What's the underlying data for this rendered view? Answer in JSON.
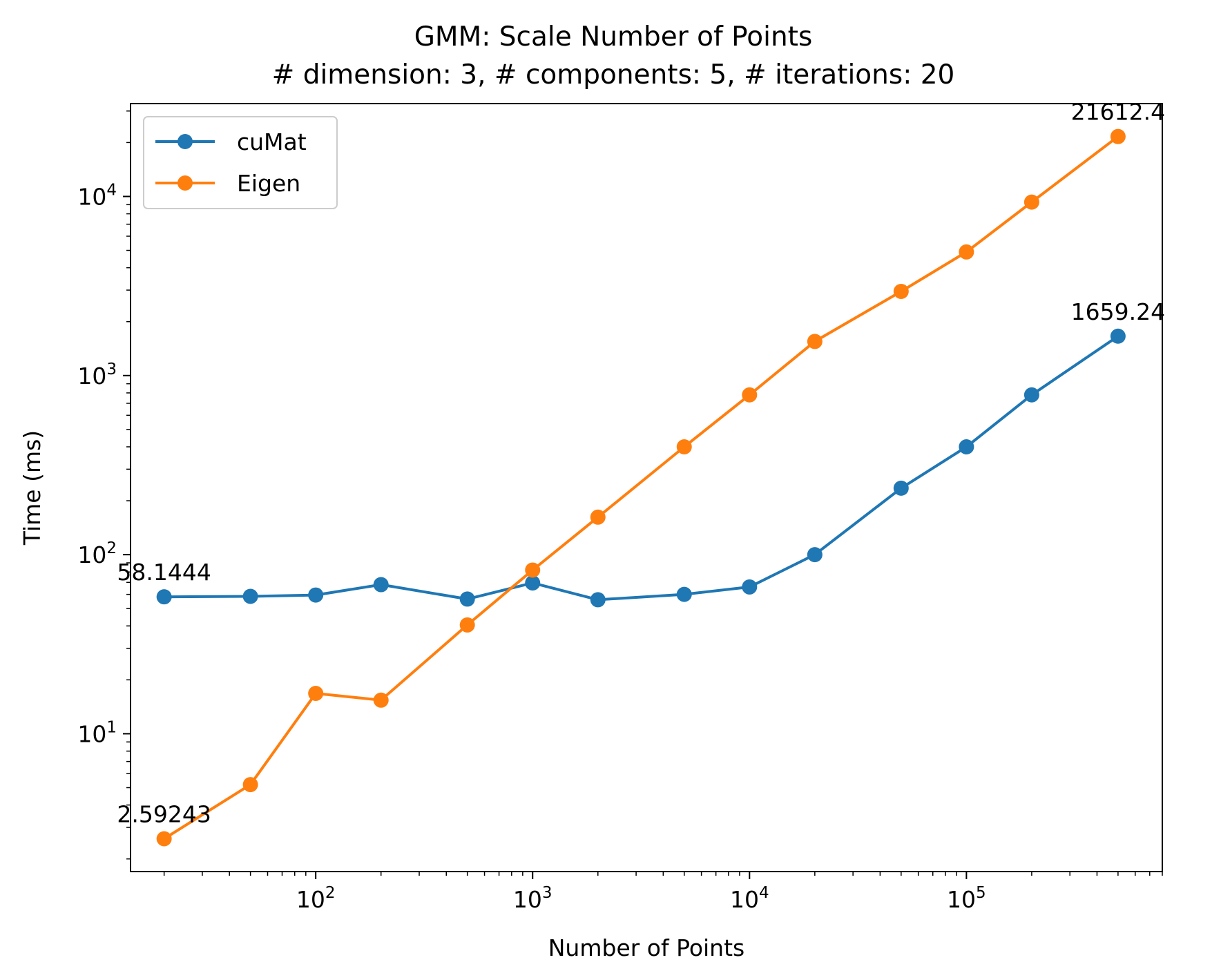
{
  "chart_data": {
    "type": "line",
    "title": "GMM: Scale Number of Points",
    "subtitle": "# dimension: 3, # components: 5, # iterations: 20",
    "xlabel": "Number of Points",
    "ylabel": "Time (ms)",
    "xscale": "log",
    "yscale": "log",
    "xlim": [
      14,
      800000
    ],
    "ylim": [
      1.7,
      33000
    ],
    "x_major_ticks": [
      {
        "value": 100,
        "base": "10",
        "exp": "2"
      },
      {
        "value": 1000,
        "base": "10",
        "exp": "3"
      },
      {
        "value": 10000,
        "base": "10",
        "exp": "4"
      },
      {
        "value": 100000,
        "base": "10",
        "exp": "5"
      }
    ],
    "y_major_ticks": [
      {
        "value": 10,
        "base": "10",
        "exp": "1"
      },
      {
        "value": 100,
        "base": "10",
        "exp": "2"
      },
      {
        "value": 1000,
        "base": "10",
        "exp": "3"
      },
      {
        "value": 10000,
        "base": "10",
        "exp": "4"
      }
    ],
    "grid": false,
    "legend_position": "top-left",
    "x": [
      20,
      50,
      100,
      200,
      500,
      1000,
      2000,
      5000,
      10000,
      20000,
      50000,
      100000,
      200000,
      500000
    ],
    "series": [
      {
        "name": "cuMat",
        "color": "#1f77b4",
        "values": [
          58.1444,
          58.5,
          59.5,
          68,
          56.5,
          69.5,
          56,
          60,
          66,
          100,
          235,
          400,
          780,
          1659.24
        ]
      },
      {
        "name": "Eigen",
        "color": "#ff7f0e",
        "values": [
          2.59243,
          5.2,
          16.8,
          15.4,
          40.5,
          82,
          162,
          400,
          780,
          1550,
          2950,
          4900,
          9300,
          21612.4
        ]
      }
    ],
    "annotations": [
      {
        "text": "58.1444",
        "series": 0,
        "index": 0
      },
      {
        "text": "2.59243",
        "series": 1,
        "index": 0
      },
      {
        "text": "1659.24",
        "series": 0,
        "index": 13
      },
      {
        "text": "21612.4",
        "series": 1,
        "index": 13
      }
    ]
  }
}
